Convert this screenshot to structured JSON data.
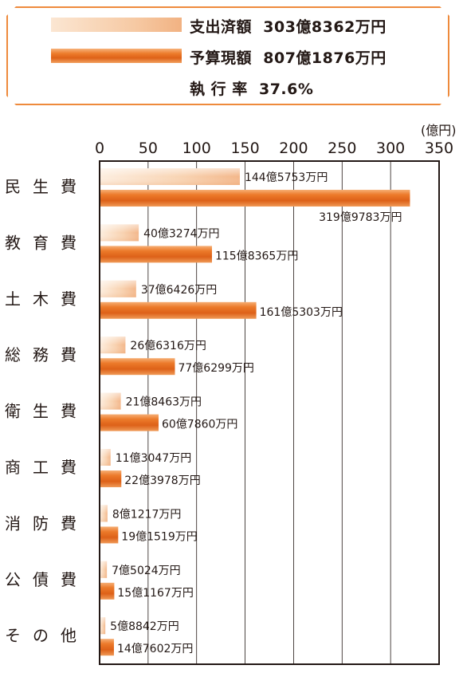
{
  "legend": {
    "spent_label": "支出済額",
    "spent_value": "303億8362万円",
    "budget_label": "予算現額",
    "budget_value": "807億1876万円",
    "rate_label": "執 行 率",
    "rate_value": "37.6%"
  },
  "colors": {
    "spent_light": "#fbe6d2",
    "budget_orange": "#e8701f",
    "border_orange": "#ee8a3c"
  },
  "chart_data": {
    "type": "bar",
    "orientation": "horizontal",
    "unit": "(億円)",
    "xlim": [
      0,
      350
    ],
    "ticks": [
      "0",
      "50",
      "100",
      "150",
      "200",
      "250",
      "300",
      "350"
    ],
    "tick_values": [
      0,
      50,
      100,
      150,
      200,
      250,
      300,
      350
    ],
    "grid": true,
    "categories": [
      "民生費",
      "教育費",
      "土木費",
      "総務費",
      "衛生費",
      "商工費",
      "消防費",
      "公債費",
      "その他"
    ],
    "series": [
      {
        "name": "支出済額",
        "values": [
          144.5753,
          40.3274,
          37.6426,
          26.6316,
          21.8463,
          11.3047,
          8.1217,
          7.5024,
          5.8842
        ],
        "labels": [
          "144億5753万円",
          "40億3274万円",
          "37億6426万円",
          "26億6316万円",
          "21億8463万円",
          "11億3047万円",
          "8億1217万円",
          "7億5024万円",
          "5億8842万円"
        ]
      },
      {
        "name": "予算現額",
        "values": [
          319.9783,
          115.8365,
          161.5303,
          77.6299,
          60.786,
          22.3978,
          19.1519,
          15.1167,
          14.7602
        ],
        "labels": [
          "319億9783万円",
          "115億8365万円",
          "161億5303万円",
          "77億6299万円",
          "60億7860万円",
          "22億3978万円",
          "19億1519万円",
          "15億1167万円",
          "14億7602万円"
        ]
      }
    ]
  }
}
